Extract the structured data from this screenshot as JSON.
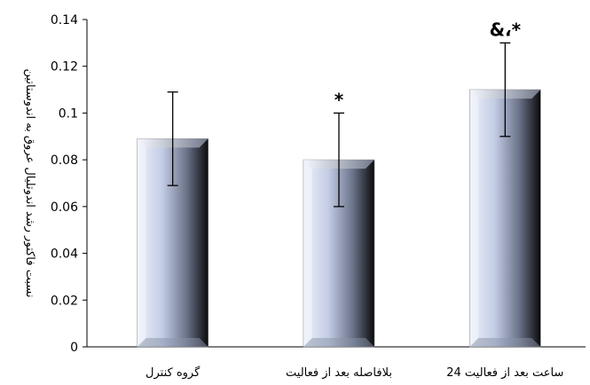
{
  "chart_data": {
    "type": "bar",
    "ylabel": "نسبت فاکتور رشد اندوتلیال عروق به اندوستاتین",
    "ylim": [
      0,
      0.14
    ],
    "yticks": [
      0,
      0.02,
      0.04,
      0.06,
      0.08,
      0.1,
      0.12,
      0.14
    ],
    "ytick_labels": [
      "0",
      "0.02",
      "0.04",
      "0.06",
      "0.08",
      "0.1",
      "0.12",
      "0.14"
    ],
    "categories": [
      "گروه کنترل",
      "بلافاصله بعد از فعالیت",
      "24 ساعت بعد از فعالیت"
    ],
    "values": [
      0.089,
      0.08,
      0.11
    ],
    "error_low": [
      0.069,
      0.06,
      0.09
    ],
    "error_high": [
      0.109,
      0.1,
      0.13
    ],
    "annotations": [
      "",
      "*",
      "&،*"
    ],
    "grid": false,
    "bar_colors": {
      "light": "#dfe5f4",
      "mid": "#a6b3d3",
      "dark": "#111111"
    }
  }
}
